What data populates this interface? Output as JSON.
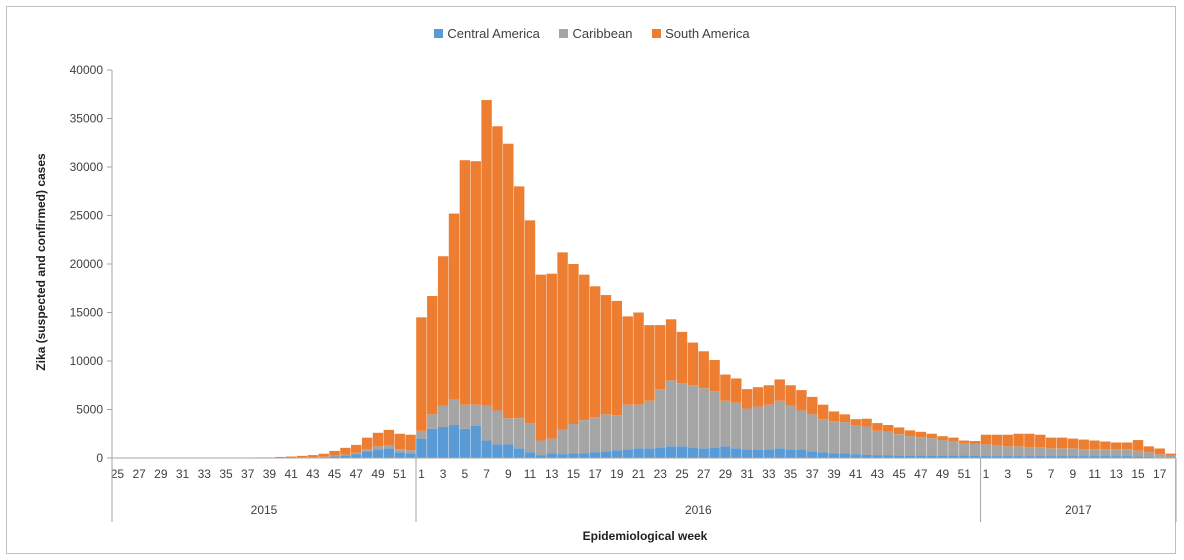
{
  "chart_data": {
    "type": "bar",
    "stacked": true,
    "legend": [
      {
        "name": "Central America",
        "color": "#5b9bd5"
      },
      {
        "name": "Caribbean",
        "color": "#a5a5a5"
      },
      {
        "name": "South America",
        "color": "#ed7d31"
      }
    ],
    "legend_position": "top-center",
    "xlabel": "Epidemiological week",
    "ylabel": "Zika (suspected and confirmed) cases",
    "ylim": [
      0,
      40000
    ],
    "y_ticks": [
      0,
      5000,
      10000,
      15000,
      20000,
      25000,
      30000,
      35000,
      40000
    ],
    "grid": false,
    "years": [
      {
        "label": "2015",
        "weeks": [
          25,
          26,
          27,
          28,
          29,
          30,
          31,
          32,
          33,
          34,
          35,
          36,
          37,
          38,
          39,
          40,
          41,
          42,
          43,
          44,
          45,
          46,
          47,
          48,
          49,
          50,
          51,
          52
        ]
      },
      {
        "label": "2016",
        "weeks": [
          1,
          2,
          3,
          4,
          5,
          6,
          7,
          8,
          9,
          10,
          11,
          12,
          13,
          14,
          15,
          16,
          17,
          18,
          19,
          20,
          21,
          22,
          23,
          24,
          25,
          26,
          27,
          28,
          29,
          30,
          31,
          32,
          33,
          34,
          35,
          36,
          37,
          38,
          39,
          40,
          41,
          42,
          43,
          44,
          45,
          46,
          47,
          48,
          49,
          50,
          51,
          52
        ]
      },
      {
        "label": "2017",
        "weeks": [
          1,
          2,
          3,
          4,
          5,
          6,
          7,
          8,
          9,
          10,
          11,
          12,
          13,
          14,
          15,
          16,
          17,
          18
        ]
      }
    ],
    "series": [
      {
        "name": "Central America",
        "values": [
          0,
          0,
          0,
          0,
          0,
          0,
          0,
          0,
          0,
          0,
          0,
          0,
          0,
          0,
          0,
          20,
          30,
          40,
          60,
          80,
          150,
          250,
          400,
          700,
          900,
          1000,
          600,
          500,
          2000,
          3000,
          3200,
          3400,
          3000,
          3300,
          1800,
          1400,
          1400,
          1000,
          600,
          300,
          500,
          400,
          500,
          500,
          600,
          700,
          800,
          900,
          1000,
          1000,
          1100,
          1200,
          1200,
          1100,
          1000,
          1100,
          1200,
          1000,
          900,
          900,
          900,
          1000,
          900,
          900,
          700,
          600,
          500,
          500,
          400,
          350,
          300,
          300,
          250,
          250,
          250,
          250,
          250,
          250,
          250,
          250,
          200,
          200,
          200,
          200,
          200,
          200,
          200,
          200,
          200,
          200,
          200,
          200,
          200,
          200,
          150,
          100,
          80,
          50
        ]
      },
      {
        "name": "Caribbean",
        "values": [
          0,
          0,
          0,
          0,
          0,
          0,
          0,
          0,
          0,
          0,
          0,
          0,
          0,
          0,
          0,
          10,
          20,
          30,
          40,
          60,
          80,
          100,
          150,
          200,
          300,
          300,
          300,
          300,
          800,
          1500,
          2200,
          2600,
          2500,
          2200,
          3600,
          3500,
          2700,
          3100,
          3000,
          1500,
          1500,
          2500,
          3000,
          3400,
          3600,
          3800,
          3600,
          4600,
          4500,
          4900,
          6000,
          6800,
          6500,
          6400,
          6200,
          5800,
          4700,
          4700,
          4200,
          4400,
          4600,
          4900,
          4500,
          4000,
          3800,
          3400,
          3300,
          3200,
          3000,
          2900,
          2500,
          2400,
          2200,
          2000,
          1900,
          1800,
          1600,
          1500,
          1300,
          1200,
          1200,
          1100,
          1000,
          1000,
          900,
          900,
          800,
          800,
          800,
          700,
          700,
          700,
          700,
          700,
          600,
          500,
          300,
          200
        ]
      },
      {
        "name": "South America",
        "values": [
          10,
          10,
          20,
          20,
          20,
          30,
          30,
          30,
          40,
          40,
          40,
          50,
          50,
          60,
          60,
          80,
          100,
          150,
          200,
          300,
          500,
          700,
          800,
          1200,
          1400,
          1600,
          1600,
          1600,
          11700,
          12200,
          15400,
          19200,
          25200,
          25100,
          31500,
          29300,
          28300,
          23900,
          20900,
          17100,
          17000,
          18300,
          16500,
          15000,
          13500,
          12300,
          11800,
          9100,
          9500,
          7800,
          6600,
          6300,
          5300,
          4400,
          3800,
          3200,
          2700,
          2500,
          2000,
          2000,
          2000,
          2200,
          2100,
          2100,
          1800,
          1500,
          1000,
          800,
          600,
          800,
          800,
          700,
          700,
          600,
          550,
          450,
          400,
          350,
          250,
          300,
          1000,
          1100,
          1200,
          1300,
          1400,
          1300,
          1100,
          1100,
          1000,
          1000,
          900,
          800,
          700,
          700,
          1100,
          600,
          600,
          200
        ]
      }
    ]
  }
}
